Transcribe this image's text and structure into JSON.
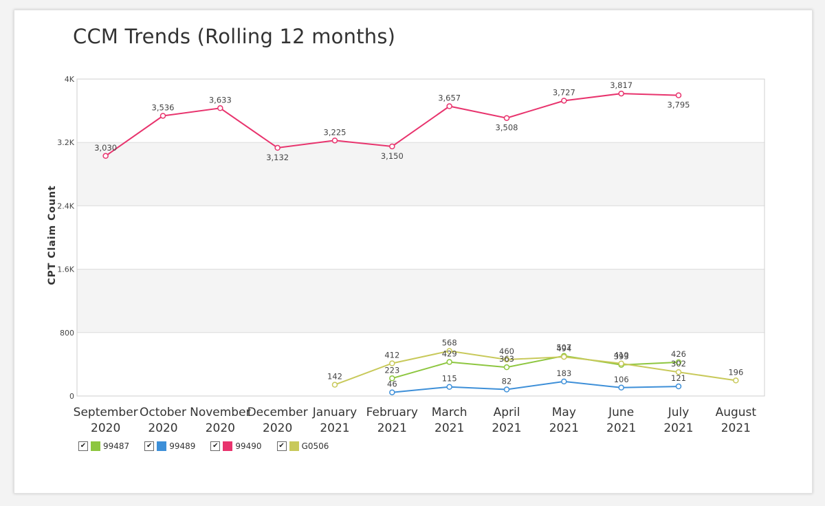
{
  "chart_data": {
    "type": "line",
    "title": "CCM Trends (Rolling 12 months)",
    "xlabel": "",
    "ylabel": "CPT Claim Count",
    "ylim": [
      0,
      4000
    ],
    "y_ticks": [
      0,
      800,
      1600,
      2400,
      3200,
      4000
    ],
    "y_tick_labels": [
      "0",
      "800",
      "1.6K",
      "2.4K",
      "3.2K",
      "4K"
    ],
    "categories": [
      [
        "September",
        "2020"
      ],
      [
        "October",
        "2020"
      ],
      [
        "November",
        "2020"
      ],
      [
        "December",
        "2020"
      ],
      [
        "January",
        "2021"
      ],
      [
        "February",
        "2021"
      ],
      [
        "March",
        "2021"
      ],
      [
        "April",
        "2021"
      ],
      [
        "May",
        "2021"
      ],
      [
        "June",
        "2021"
      ],
      [
        "July",
        "2021"
      ],
      [
        "August",
        "2021"
      ]
    ],
    "series": [
      {
        "name": "99487",
        "color": "#8dc63f",
        "values": [
          null,
          null,
          null,
          null,
          null,
          223,
          429,
          363,
          507,
          393,
          426,
          null
        ]
      },
      {
        "name": "99489",
        "color": "#3d8fd8",
        "values": [
          null,
          null,
          null,
          null,
          null,
          46,
          115,
          82,
          183,
          106,
          121,
          null
        ]
      },
      {
        "name": "99490",
        "color": "#e8336d",
        "values": [
          3030,
          3536,
          3633,
          3132,
          3225,
          3150,
          3657,
          3508,
          3727,
          3817,
          3795,
          null
        ]
      },
      {
        "name": "G0506",
        "color": "#c8c95a",
        "values": [
          null,
          null,
          null,
          null,
          142,
          412,
          568,
          460,
          494,
          410,
          302,
          196
        ]
      }
    ],
    "legend_position": "bottom-left",
    "grid": true
  }
}
